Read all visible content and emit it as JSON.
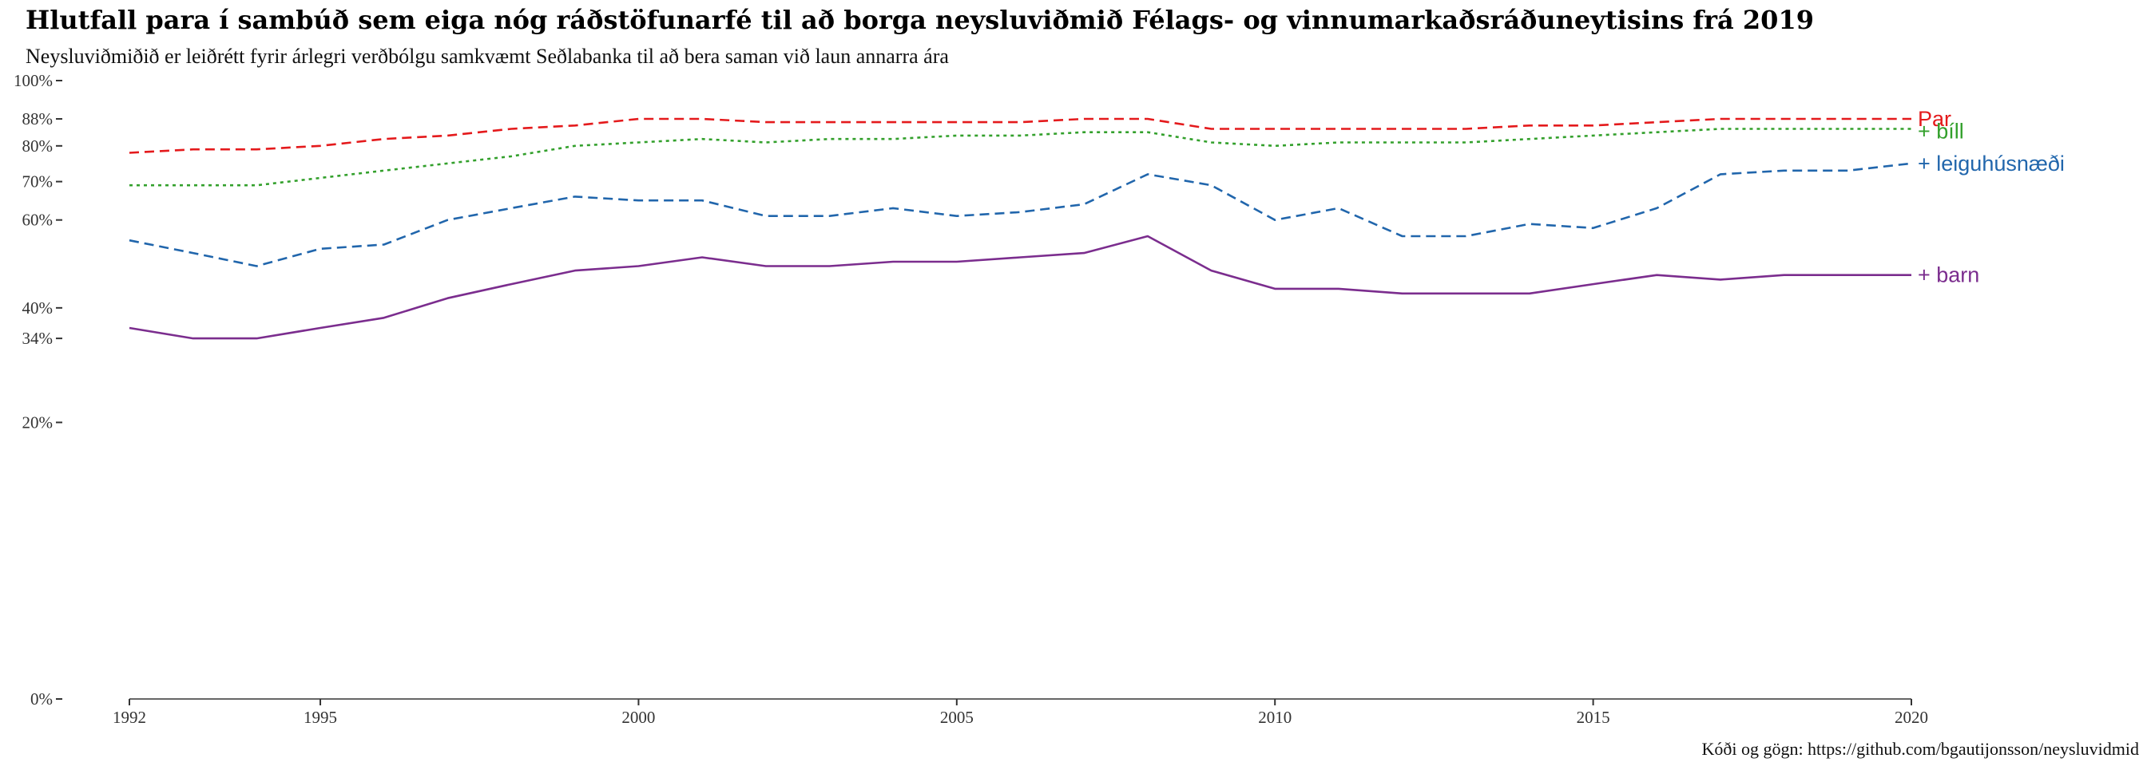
{
  "title": "Hlutfall para í sambúð sem eiga nóg ráðstöfunarfé til að borga neysluviðmið Félags- og vinnumarkaðsráðuneytisins frá 2019",
  "subtitle": "Neysluviðmiðið er leiðrétt fyrir árlegri verðbólgu samkvæmt Seðlabanka til að bera saman við laun annarra ára",
  "caption": "Kóði og gögn: https://github.com/bgautijonsson/neysluvidmid",
  "chart_data": {
    "type": "line",
    "x_scale": "linear",
    "y_scale": "sqrt",
    "xlim": [
      1992,
      2020
    ],
    "ylim": [
      0,
      100
    ],
    "x_ticks": [
      1992,
      1995,
      2000,
      2005,
      2010,
      2015,
      2020
    ],
    "x_tick_labels": [
      "1992",
      "1995",
      "2000",
      "2005",
      "2010",
      "2015",
      "2020"
    ],
    "y_ticks": [
      0,
      20,
      34,
      40,
      60,
      70,
      80,
      88,
      100
    ],
    "y_tick_labels": [
      "0%",
      "20%",
      "34%",
      "40%",
      "60%",
      "70%",
      "80%",
      "88%",
      "100%"
    ],
    "legend": "direct labels at right end of lines",
    "grid": false,
    "x": [
      1992,
      1993,
      1994,
      1995,
      1996,
      1997,
      1998,
      1999,
      2000,
      2001,
      2002,
      2003,
      2004,
      2005,
      2006,
      2007,
      2008,
      2009,
      2010,
      2011,
      2012,
      2013,
      2014,
      2015,
      2016,
      2017,
      2018,
      2019,
      2020
    ],
    "series": [
      {
        "name": "Par",
        "color": "#e41a1c",
        "dash": "dashed",
        "values": [
          78,
          79,
          79,
          80,
          82,
          83,
          85,
          86,
          88,
          88,
          87,
          87,
          87,
          87,
          87,
          88,
          88,
          85,
          85,
          85,
          85,
          85,
          86,
          86,
          87,
          88,
          88,
          88,
          88
        ]
      },
      {
        "name": "+ bíll",
        "color": "#33a02c",
        "dash": "dotted",
        "values": [
          69,
          69,
          69,
          71,
          73,
          75,
          77,
          80,
          81,
          82,
          81,
          82,
          82,
          83,
          83,
          84,
          84,
          81,
          80,
          81,
          81,
          81,
          82,
          83,
          84,
          85,
          85,
          85,
          85
        ]
      },
      {
        "name": "+ leiguhúsnæði",
        "color": "#2166ac",
        "dash": "dashed",
        "values": [
          55,
          52,
          49,
          53,
          54,
          60,
          63,
          66,
          65,
          65,
          61,
          61,
          63,
          61,
          62,
          64,
          72,
          69,
          60,
          63,
          56,
          56,
          59,
          58,
          63,
          72,
          73,
          73,
          75
        ]
      },
      {
        "name": "+ barn",
        "color": "#7b2d8e",
        "dash": "solid",
        "values": [
          36,
          34,
          34,
          36,
          38,
          42,
          45,
          48,
          49,
          51,
          49,
          49,
          50,
          50,
          51,
          52,
          56,
          48,
          44,
          44,
          43,
          43,
          43,
          45,
          47,
          46,
          47,
          47,
          47
        ]
      }
    ]
  }
}
